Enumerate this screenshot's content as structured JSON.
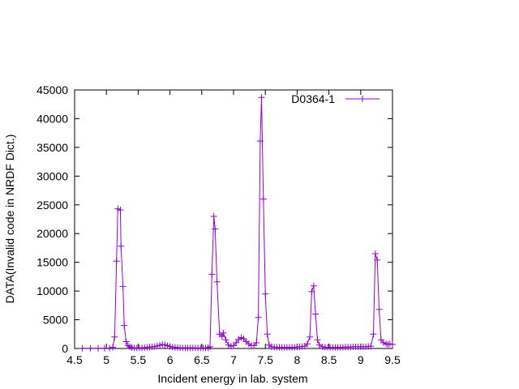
{
  "chart_data": {
    "type": "line",
    "xlabel": "Incident energy in lab. system",
    "ylabel": "DATA(Invalid code in NRDF Dict.)",
    "xlim": [
      4.5,
      9.5
    ],
    "ylim": [
      0,
      45000
    ],
    "x_ticks": [
      4.5,
      5,
      5.5,
      6,
      6.5,
      7,
      7.5,
      8,
      8.5,
      9,
      9.5
    ],
    "x_tick_labels": [
      "4.5",
      "5",
      "5.5",
      "6",
      "6.5",
      "7",
      "7.5",
      "8",
      "8.5",
      "9",
      "9.5"
    ],
    "y_ticks": [
      0,
      5000,
      10000,
      15000,
      20000,
      25000,
      30000,
      35000,
      40000,
      45000
    ],
    "y_tick_labels": [
      "0",
      "5000",
      "10000",
      "15000",
      "20000",
      "25000",
      "30000",
      "35000",
      "40000",
      "45000"
    ],
    "grid": false,
    "legend_position": "top-right",
    "marker": "plus",
    "color": "#9400d3",
    "series": [
      {
        "name": "D0364-1",
        "points": [
          [
            4.62,
            30
          ],
          [
            4.75,
            30
          ],
          [
            4.87,
            30
          ],
          [
            4.97,
            40
          ],
          [
            5.05,
            60
          ],
          [
            5.1,
            200
          ],
          [
            5.13,
            2000
          ],
          [
            5.16,
            15200
          ],
          [
            5.18,
            24300
          ],
          [
            5.22,
            24100
          ],
          [
            5.23,
            17800
          ],
          [
            5.26,
            10800
          ],
          [
            5.28,
            4000
          ],
          [
            5.31,
            1200
          ],
          [
            5.34,
            500
          ],
          [
            5.37,
            300
          ],
          [
            5.4,
            150
          ],
          [
            5.44,
            100
          ],
          [
            5.48,
            80
          ],
          [
            5.52,
            100
          ],
          [
            5.56,
            100
          ],
          [
            5.6,
            150
          ],
          [
            5.64,
            200
          ],
          [
            5.68,
            250
          ],
          [
            5.72,
            300
          ],
          [
            5.76,
            350
          ],
          [
            5.8,
            450
          ],
          [
            5.84,
            550
          ],
          [
            5.88,
            700
          ],
          [
            5.92,
            650
          ],
          [
            5.96,
            500
          ],
          [
            6.0,
            350
          ],
          [
            6.04,
            250
          ],
          [
            6.08,
            200
          ],
          [
            6.12,
            150
          ],
          [
            6.16,
            100
          ],
          [
            6.2,
            100
          ],
          [
            6.24,
            100
          ],
          [
            6.28,
            100
          ],
          [
            6.32,
            100
          ],
          [
            6.36,
            100
          ],
          [
            6.4,
            100
          ],
          [
            6.44,
            80
          ],
          [
            6.48,
            80
          ],
          [
            6.52,
            80
          ],
          [
            6.56,
            100
          ],
          [
            6.6,
            150
          ],
          [
            6.63,
            300
          ],
          [
            6.66,
            12900
          ],
          [
            6.69,
            23000
          ],
          [
            6.71,
            20800
          ],
          [
            6.74,
            11600
          ],
          [
            6.78,
            2500
          ],
          [
            6.82,
            2100
          ],
          [
            6.84,
            2700
          ],
          [
            6.88,
            1500
          ],
          [
            6.92,
            600
          ],
          [
            6.96,
            400
          ],
          [
            7.0,
            500
          ],
          [
            7.04,
            1000
          ],
          [
            7.08,
            1600
          ],
          [
            7.12,
            1900
          ],
          [
            7.16,
            1700
          ],
          [
            7.2,
            1200
          ],
          [
            7.24,
            800
          ],
          [
            7.28,
            500
          ],
          [
            7.32,
            500
          ],
          [
            7.36,
            1000
          ],
          [
            7.39,
            5400
          ],
          [
            7.42,
            36100
          ],
          [
            7.44,
            43700
          ],
          [
            7.47,
            26000
          ],
          [
            7.5,
            9500
          ],
          [
            7.53,
            2500
          ],
          [
            7.56,
            600
          ],
          [
            7.6,
            300
          ],
          [
            7.64,
            250
          ],
          [
            7.68,
            200
          ],
          [
            7.72,
            200
          ],
          [
            7.76,
            200
          ],
          [
            7.8,
            200
          ],
          [
            7.84,
            200
          ],
          [
            7.88,
            200
          ],
          [
            7.92,
            200
          ],
          [
            7.96,
            200
          ],
          [
            8.0,
            250
          ],
          [
            8.04,
            300
          ],
          [
            8.08,
            350
          ],
          [
            8.12,
            400
          ],
          [
            8.16,
            800
          ],
          [
            8.2,
            2000
          ],
          [
            8.23,
            9900
          ],
          [
            8.26,
            10900
          ],
          [
            8.29,
            6000
          ],
          [
            8.32,
            1500
          ],
          [
            8.35,
            600
          ],
          [
            8.4,
            300
          ],
          [
            8.44,
            200
          ],
          [
            8.48,
            200
          ],
          [
            8.52,
            200
          ],
          [
            8.56,
            200
          ],
          [
            8.6,
            200
          ],
          [
            8.64,
            200
          ],
          [
            8.68,
            200
          ],
          [
            8.72,
            200
          ],
          [
            8.76,
            250
          ],
          [
            8.8,
            250
          ],
          [
            8.84,
            250
          ],
          [
            8.88,
            300
          ],
          [
            8.92,
            300
          ],
          [
            8.96,
            300
          ],
          [
            9.0,
            300
          ],
          [
            9.04,
            300
          ],
          [
            9.08,
            300
          ],
          [
            9.12,
            350
          ],
          [
            9.16,
            400
          ],
          [
            9.2,
            2500
          ],
          [
            9.23,
            16500
          ],
          [
            9.26,
            15400
          ],
          [
            9.29,
            6800
          ],
          [
            9.32,
            1500
          ],
          [
            9.36,
            1000
          ],
          [
            9.4,
            800
          ],
          [
            9.43,
            700
          ],
          [
            9.46,
            800
          ],
          [
            9.5,
            700
          ]
        ]
      }
    ]
  }
}
